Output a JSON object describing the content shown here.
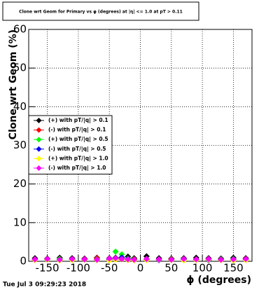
{
  "chart_data": {
    "type": "scatter",
    "title": "Clone wrt Geom for Primary vs φ (degrees) at |η| <= 1.0 at pT > 0.11",
    "xlabel": "ϕ (degrees)",
    "ylabel": "Clone wrt Geom (%)",
    "x": [
      -170,
      -150,
      -130,
      -110,
      -90,
      -70,
      -50,
      -40,
      -30,
      -20,
      -10,
      10,
      30,
      50,
      70,
      90,
      110,
      130,
      150,
      170
    ],
    "series": [
      {
        "name": "(+) with pT/|q| > 0.1",
        "color": "#000000",
        "values": [
          0.8,
          0.7,
          0.9,
          0.8,
          0.7,
          0.9,
          0.8,
          0.9,
          1.0,
          1.2,
          0.8,
          1.3,
          0.8,
          0.7,
          0.8,
          0.9,
          0.8,
          0.7,
          0.9,
          0.8
        ]
      },
      {
        "name": "(-) with pT/|q| > 0.1",
        "color": "#ff0000",
        "values": [
          0.5,
          0.6,
          0.4,
          0.5,
          0.6,
          0.8,
          0.5,
          0.6,
          0.7,
          0.5,
          0.6,
          0.5,
          0.4,
          0.6,
          0.5,
          0.4,
          0.6,
          0.5,
          0.5,
          0.6
        ]
      },
      {
        "name": "(+) with pT/|q| > 0.5",
        "color": "#00ff00",
        "values": [
          0.5,
          0.4,
          0.6,
          0.5,
          0.4,
          0.5,
          0.6,
          2.5,
          1.8,
          0.7,
          0.5,
          0.6,
          0.4,
          0.5,
          0.6,
          0.5,
          0.4,
          0.5,
          0.6,
          0.5
        ]
      },
      {
        "name": "(-) with pT/|q| > 0.5",
        "color": "#0000ff",
        "values": [
          0.4,
          0.5,
          0.3,
          0.4,
          0.5,
          0.4,
          0.5,
          0.6,
          1.0,
          0.6,
          0.4,
          0.5,
          0.3,
          0.4,
          0.5,
          0.4,
          0.3,
          0.4,
          0.5,
          0.4
        ]
      },
      {
        "name": "(+) with pT/|q| > 1.0",
        "color": "#ffff00",
        "values": [
          0.3,
          0.4,
          0.2,
          0.3,
          0.4,
          0.3,
          0.2,
          0.4,
          0.5,
          0.3,
          0.2,
          0.3,
          0.4,
          0.3,
          0.2,
          0.3,
          0.4,
          0.3,
          0.2,
          0.3
        ]
      },
      {
        "name": "(-) with pT/|q| > 1.0",
        "color": "#ff00ff",
        "values": [
          0.5,
          0.6,
          0.4,
          0.6,
          0.5,
          0.4,
          0.7,
          0.8,
          0.6,
          0.5,
          0.4,
          0.6,
          0.5,
          0.4,
          0.6,
          0.5,
          0.6,
          0.4,
          0.5,
          0.6
        ]
      }
    ],
    "xlim": [
      -180,
      180
    ],
    "ylim": [
      0,
      60
    ],
    "xticks": [
      -150,
      -100,
      -50,
      0,
      50,
      100,
      150
    ],
    "yticks": [
      0,
      10,
      20,
      30,
      40,
      50,
      60
    ],
    "grid": true,
    "legend": "center-left"
  },
  "timestamp": "Tue Jul  3 09:29:23 2018"
}
